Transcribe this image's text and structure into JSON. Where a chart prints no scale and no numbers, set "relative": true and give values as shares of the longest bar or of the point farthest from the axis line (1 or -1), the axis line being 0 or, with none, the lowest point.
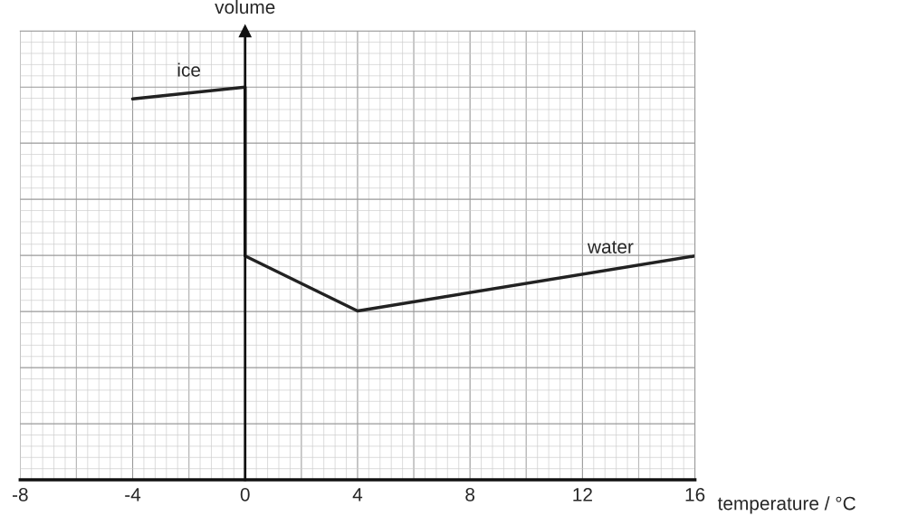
{
  "chart_data": {
    "type": "line",
    "relative": true,
    "xlabel": "temperature / °C",
    "ylabel": "volume",
    "x": [
      -4,
      0,
      0,
      4,
      16
    ],
    "series": [
      {
        "color": "#222222",
        "values": [
          0.97,
          1.0,
          0.57,
          0.43,
          0.57
        ]
      }
    ],
    "xlim": [
      -8,
      16
    ],
    "xticks": [
      -8,
      -4,
      0,
      4,
      8,
      12,
      16
    ],
    "grid": true,
    "marker": "none",
    "line_style": "solid",
    "annotations": [
      {
        "text": "ice",
        "x": -2,
        "y": 0.985
      },
      {
        "text": "water",
        "x": 13,
        "y": 0.535
      }
    ]
  }
}
